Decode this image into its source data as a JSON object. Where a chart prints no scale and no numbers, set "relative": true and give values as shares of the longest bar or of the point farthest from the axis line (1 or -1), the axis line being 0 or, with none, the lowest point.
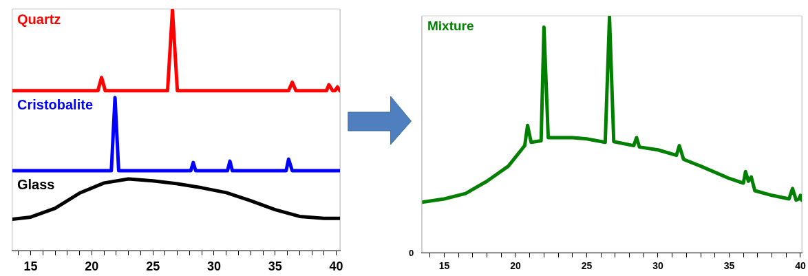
{
  "chart_data": [
    {
      "type": "line",
      "relative": true,
      "xlim": [
        13.5,
        40.3
      ],
      "xticks": [
        {
          "value": 14,
          "label": null
        },
        15,
        {
          "value": 16,
          "label": null
        },
        {
          "value": 17,
          "label": null
        },
        {
          "value": 18,
          "label": null
        },
        {
          "value": 19,
          "label": null
        },
        20,
        {
          "value": 21,
          "label": null
        },
        {
          "value": 22,
          "label": null
        },
        {
          "value": 23,
          "label": null
        },
        {
          "value": 24,
          "label": null
        },
        25,
        {
          "value": 26,
          "label": null
        },
        {
          "value": 27,
          "label": null
        },
        {
          "value": 28,
          "label": null
        },
        {
          "value": 29,
          "label": null
        },
        30,
        {
          "value": 31,
          "label": null
        },
        {
          "value": 32,
          "label": null
        },
        {
          "value": 33,
          "label": null
        },
        {
          "value": 34,
          "label": null
        },
        35,
        {
          "value": 36,
          "label": null
        },
        {
          "value": 37,
          "label": null
        },
        {
          "value": 38,
          "label": null
        },
        {
          "value": 39,
          "label": null
        },
        40
      ],
      "grid": false,
      "marker": "none",
      "line_style": "solid",
      "series": [
        {
          "name": "Quartz",
          "color": "#ff0000",
          "x": [
            13.5,
            20.5,
            20.8,
            21.1,
            26.2,
            26.6,
            27.0,
            36.1,
            36.4,
            36.7,
            39.2,
            39.4,
            39.7,
            39.9,
            40.1,
            40.3
          ],
          "values": [
            0.665,
            0.665,
            0.72,
            0.665,
            0.665,
            1.0,
            0.665,
            0.665,
            0.7,
            0.665,
            0.665,
            0.69,
            0.665,
            0.665,
            0.68,
            0.665
          ]
        },
        {
          "name": "Cristobalite",
          "color": "#0000ff",
          "x": [
            13.5,
            21.6,
            21.9,
            22.2,
            28.1,
            28.3,
            28.5,
            31.1,
            31.3,
            31.5,
            35.9,
            36.1,
            36.4,
            40.3
          ],
          "values": [
            0.332,
            0.332,
            0.636,
            0.332,
            0.332,
            0.366,
            0.332,
            0.332,
            0.372,
            0.332,
            0.332,
            0.38,
            0.332,
            0.332
          ]
        },
        {
          "name": "Glass",
          "color": "#000000",
          "x": [
            13.5,
            15,
            17,
            19,
            21,
            23,
            25,
            27,
            29,
            31,
            33,
            35,
            37,
            39,
            40.3
          ],
          "values": [
            0.13,
            0.139,
            0.176,
            0.239,
            0.281,
            0.298,
            0.29,
            0.278,
            0.261,
            0.241,
            0.207,
            0.17,
            0.142,
            0.134,
            0.134
          ]
        }
      ]
    },
    {
      "type": "line",
      "relative": true,
      "xlim": [
        13.45,
        40.1
      ],
      "xticks": [
        {
          "value": 14,
          "label": null
        },
        15,
        {
          "value": 16,
          "label": null
        },
        {
          "value": 17,
          "label": null
        },
        {
          "value": 18,
          "label": null
        },
        {
          "value": 19,
          "label": null
        },
        20,
        {
          "value": 21,
          "label": null
        },
        {
          "value": 22,
          "label": null
        },
        {
          "value": 23,
          "label": null
        },
        {
          "value": 24,
          "label": null
        },
        25,
        {
          "value": 26,
          "label": null
        },
        {
          "value": 27,
          "label": null
        },
        {
          "value": 28,
          "label": null
        },
        {
          "value": 29,
          "label": null
        },
        30,
        {
          "value": 31,
          "label": null
        },
        {
          "value": 32,
          "label": null
        },
        {
          "value": 33,
          "label": null
        },
        {
          "value": 34,
          "label": null
        },
        35,
        {
          "value": 36,
          "label": null
        },
        {
          "value": 37,
          "label": null
        },
        {
          "value": 38,
          "label": null
        },
        {
          "value": 39,
          "label": null
        },
        40
      ],
      "grid": false,
      "marker": "none",
      "line_style": "solid",
      "annotations": [
        "0"
      ],
      "series": [
        {
          "name": "Mixture",
          "color": "#007f00",
          "x": [
            13.45,
            15,
            16.5,
            18,
            19.5,
            20.65,
            20.85,
            21.1,
            21.8,
            22.0,
            22.3,
            24,
            25,
            26.3,
            26.6,
            26.9,
            28.3,
            28.5,
            28.7,
            30,
            31.3,
            31.5,
            31.8,
            33,
            35,
            36.0,
            36.15,
            36.35,
            36.55,
            36.8,
            38,
            39.2,
            39.45,
            39.7,
            39.9,
            40.0,
            40.1
          ],
          "values": [
            0.214,
            0.228,
            0.251,
            0.303,
            0.367,
            0.454,
            0.54,
            0.468,
            0.475,
            0.957,
            0.488,
            0.488,
            0.483,
            0.468,
            1.0,
            0.471,
            0.454,
            0.488,
            0.448,
            0.436,
            0.413,
            0.454,
            0.396,
            0.367,
            0.315,
            0.295,
            0.344,
            0.303,
            0.321,
            0.263,
            0.243,
            0.228,
            0.272,
            0.223,
            0.228,
            0.243,
            0.223
          ]
        }
      ]
    }
  ]
}
